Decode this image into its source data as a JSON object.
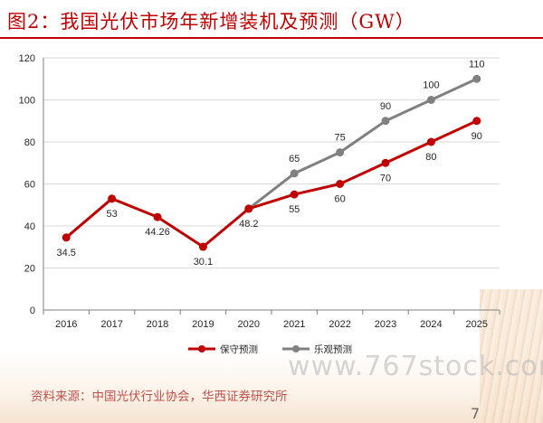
{
  "header": {
    "title": "图2：我国光伏市场年新增装机及预测（GW）"
  },
  "footer": {
    "source": "资料来源：中国光伏行业协会，华西证券研究所",
    "watermark": "www.767stock.com",
    "page_number": "7"
  },
  "colors": {
    "accent": "#c00000",
    "conservative": "#c00000",
    "optimistic": "#808080",
    "axis": "#595959",
    "grid": "#d9d9d9"
  },
  "chart_data": {
    "type": "line",
    "title": "图2：我国光伏市场年新增装机及预测（GW）",
    "xlabel": "",
    "ylabel": "",
    "categories": [
      "2016",
      "2017",
      "2018",
      "2019",
      "2020",
      "2021",
      "2022",
      "2023",
      "2024",
      "2025"
    ],
    "ylim": [
      0,
      120
    ],
    "yticks": [
      0,
      20,
      40,
      60,
      80,
      100,
      120
    ],
    "grid": true,
    "legend_position": "bottom",
    "series": [
      {
        "name": "保守预测",
        "color": "#c00000",
        "values": [
          34.5,
          53,
          44.26,
          30.1,
          48.2,
          55,
          60,
          70,
          80,
          90
        ],
        "labels": [
          "34.5",
          "53",
          "44.26",
          "30.1",
          "48.2",
          "55",
          "60",
          "70",
          "80",
          "90"
        ],
        "label_position": "below"
      },
      {
        "name": "乐观预测",
        "color": "#808080",
        "values": [
          null,
          null,
          null,
          null,
          48.2,
          65,
          75,
          90,
          100,
          110
        ],
        "labels": [
          "",
          "",
          "",
          "",
          "",
          "65",
          "75",
          "90",
          "100",
          "110"
        ],
        "label_position": "above"
      }
    ]
  }
}
